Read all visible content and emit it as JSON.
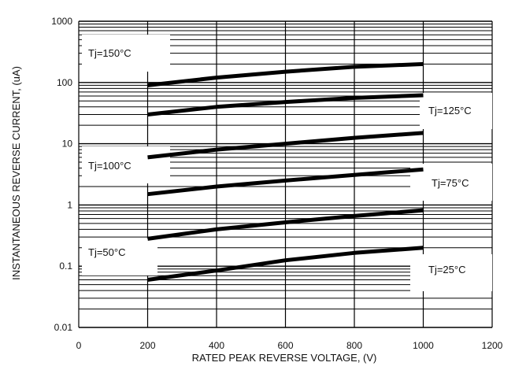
{
  "chart_data": {
    "type": "line",
    "title": "",
    "xlabel": "RATED PEAK REVERSE VOLTAGE, (V)",
    "ylabel": "INSTANTANEOUS REVERSE CURRENT, (uA)",
    "xlim": [
      0,
      1200
    ],
    "ylim": [
      0.01,
      1000
    ],
    "y_scale": "log",
    "grid": true,
    "x_ticks": [
      "0",
      "200",
      "400",
      "600",
      "800",
      "1000",
      "1200"
    ],
    "y_ticks": [
      "0.01",
      "0.1",
      "1",
      "10",
      "100",
      "1000"
    ],
    "series": [
      {
        "name": "Tj=150°C",
        "x": [
          200,
          400,
          600,
          800,
          1000
        ],
        "y": [
          90,
          120,
          150,
          180,
          200
        ]
      },
      {
        "name": "Tj=125°C",
        "x": [
          200,
          400,
          600,
          800,
          1000
        ],
        "y": [
          30,
          40,
          48,
          56,
          62
        ]
      },
      {
        "name": "Tj=100°C",
        "x": [
          200,
          400,
          600,
          800,
          1000
        ],
        "y": [
          6,
          8,
          10,
          12.5,
          15
        ]
      },
      {
        "name": "Tj=75°C",
        "x": [
          200,
          400,
          600,
          800,
          1000
        ],
        "y": [
          1.5,
          2.0,
          2.5,
          3.1,
          3.8
        ]
      },
      {
        "name": "Tj=50°C",
        "x": [
          200,
          400,
          600,
          800,
          1000
        ],
        "y": [
          0.28,
          0.4,
          0.52,
          0.66,
          0.82
        ]
      },
      {
        "name": "Tj=25°C",
        "x": [
          200,
          400,
          600,
          800,
          1000
        ],
        "y": [
          0.06,
          0.085,
          0.125,
          0.165,
          0.2
        ]
      }
    ]
  }
}
